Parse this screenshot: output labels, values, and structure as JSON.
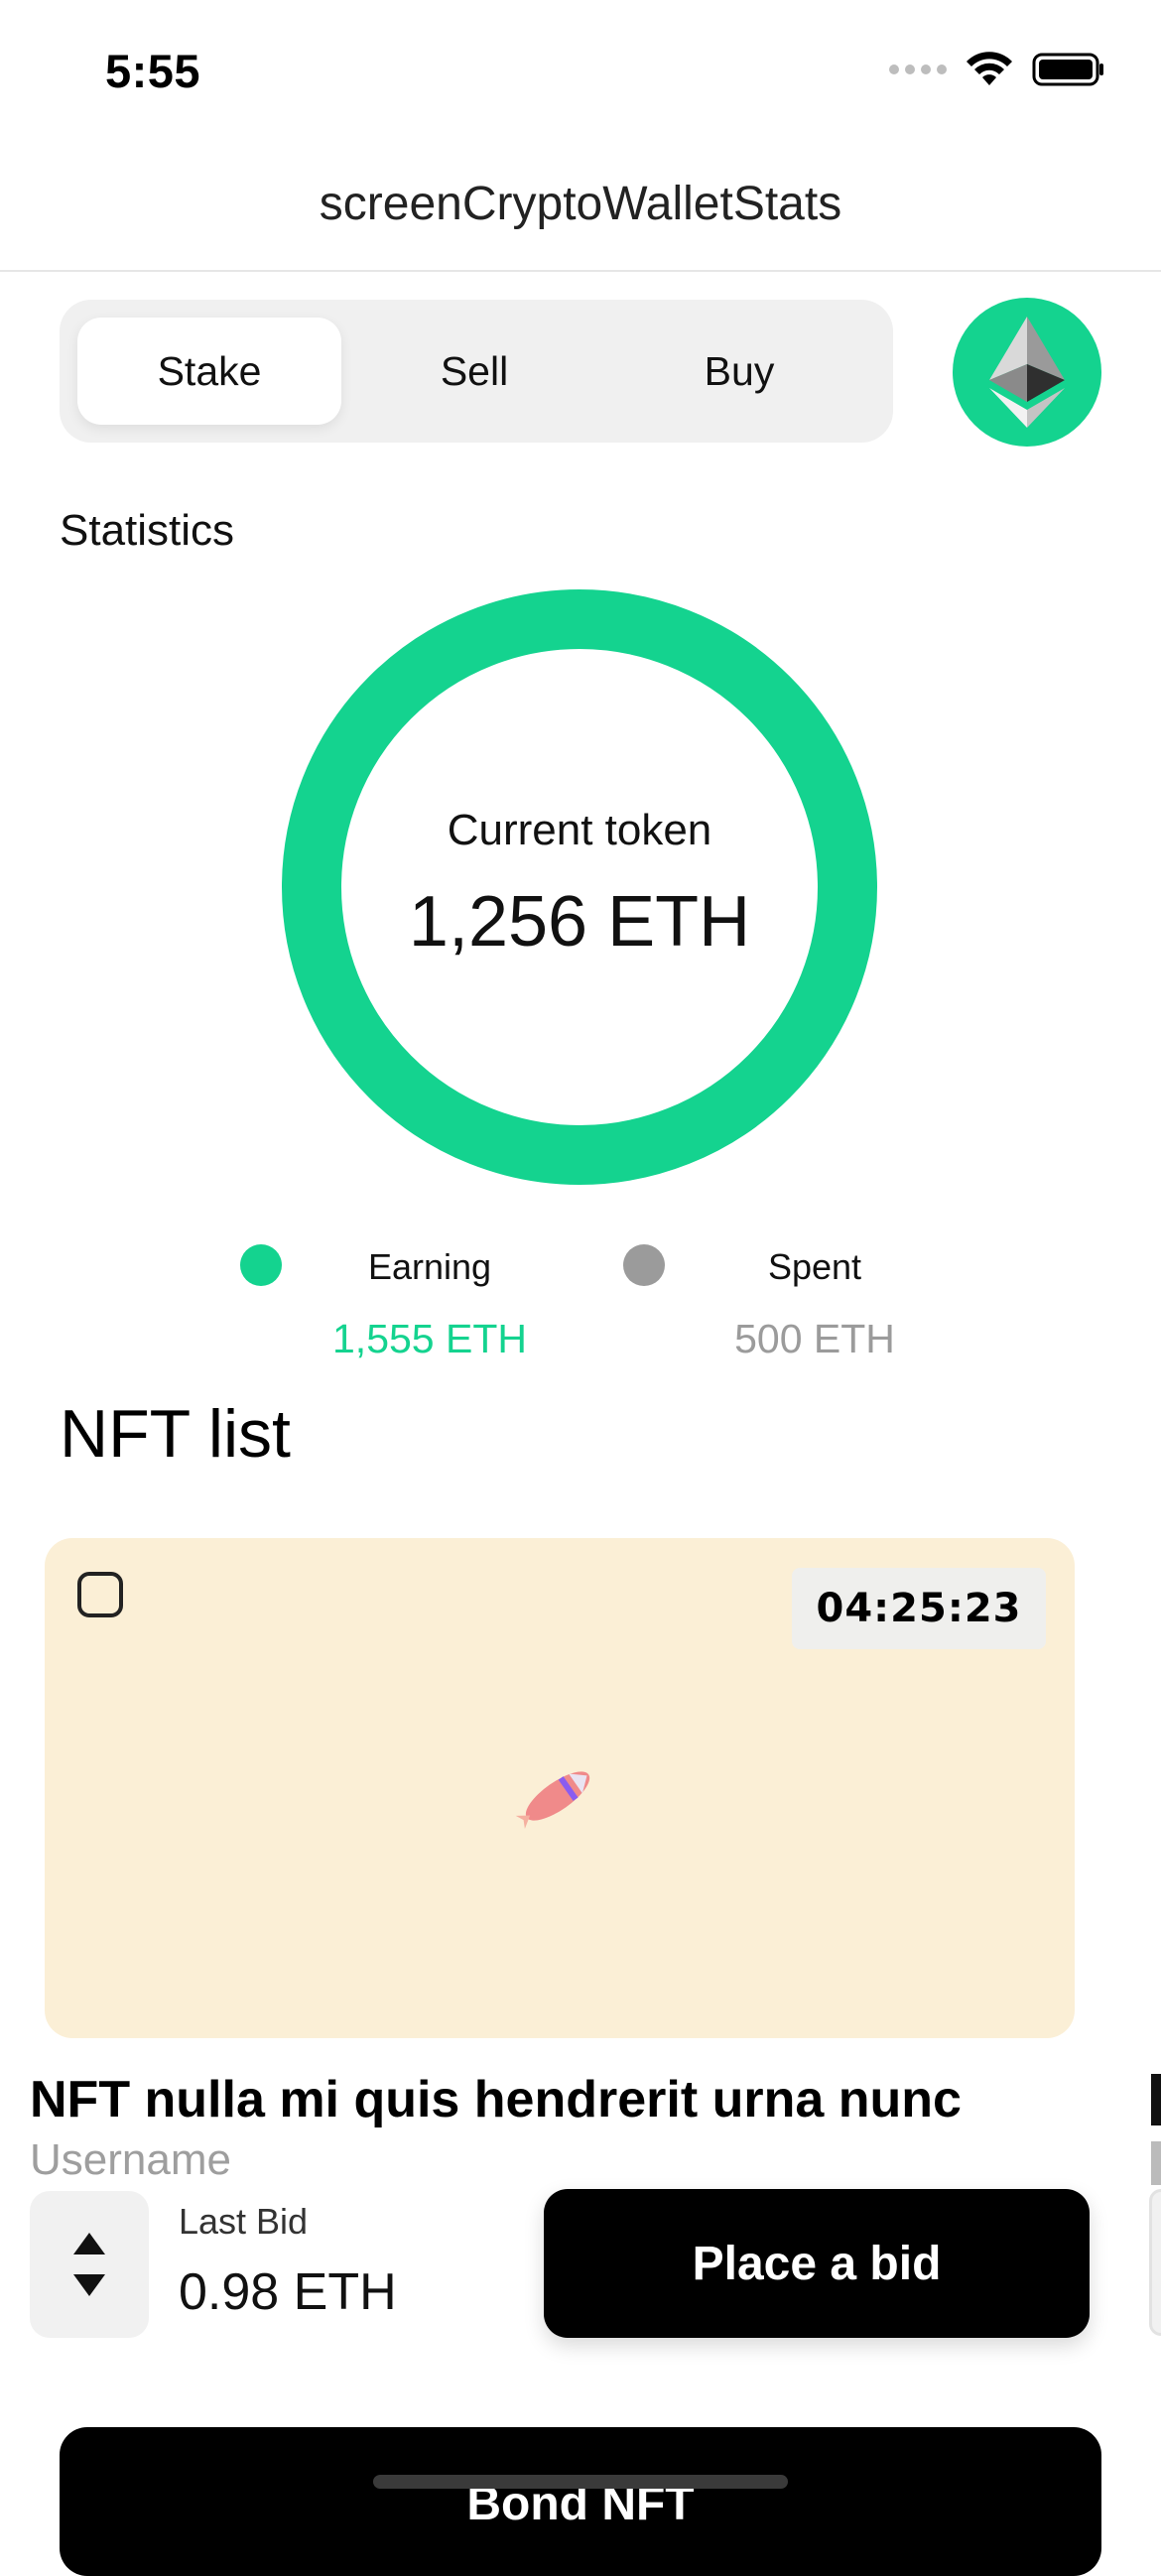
{
  "status_bar": {
    "time": "5:55",
    "icons": [
      "cellular-signal-icon",
      "wifi-icon",
      "battery-icon"
    ]
  },
  "nav": {
    "title": "screenCryptoWalletStats"
  },
  "segment": {
    "items": [
      "Stake",
      "Sell",
      "Buy"
    ],
    "selected": "Stake"
  },
  "eth_badge": {
    "icon": "ethereum-icon",
    "color": "#14d38f"
  },
  "statistics": {
    "label": "Statistics",
    "current_label": "Current token",
    "current_value": "1,256 ETH",
    "ring_color": "#14d38f",
    "legend": [
      {
        "name": "Earning",
        "value": "1,555 ETH",
        "color": "#14d38f"
      },
      {
        "name": "Spent",
        "value": "500 ETH",
        "color": "#9b9b9b"
      }
    ]
  },
  "nft_list": {
    "title": "NFT list",
    "cards": [
      {
        "timer": "04:25:23",
        "image_icon": "rocket-icon",
        "background": "#fbefd6",
        "name": "NFT nulla mi quis hendrerit urna nunc",
        "username": "Username",
        "last_bid_label": "Last Bid",
        "last_bid_value": "0.98 ETH",
        "bid_button": "Place a bid"
      }
    ]
  },
  "bottom_button": {
    "label": "Bond NFT"
  }
}
